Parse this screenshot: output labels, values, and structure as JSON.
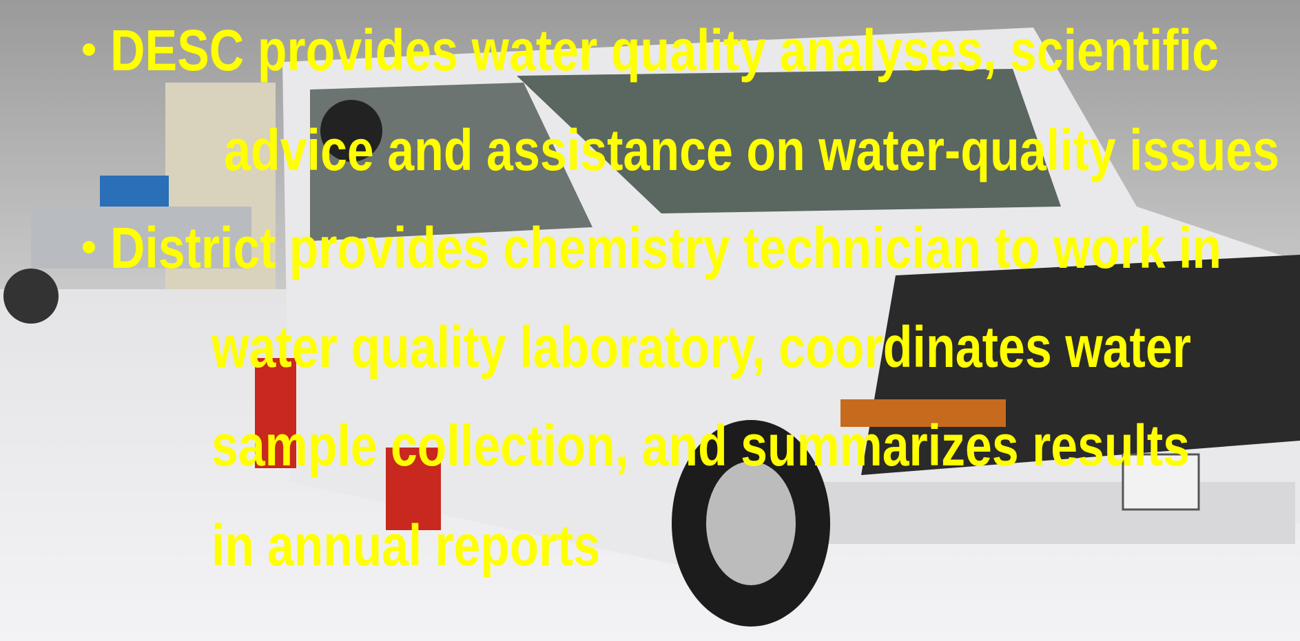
{
  "bullets": [
    {
      "lines": [
        "DESC provides water quality analyses, scientific",
        "advice and assistance on water-quality issues"
      ]
    },
    {
      "lines": [
        "District provides chemistry technician to work in",
        "water quality laboratory, coordinates water",
        "sample collection, and summarizes results",
        "in annual reports"
      ]
    }
  ]
}
